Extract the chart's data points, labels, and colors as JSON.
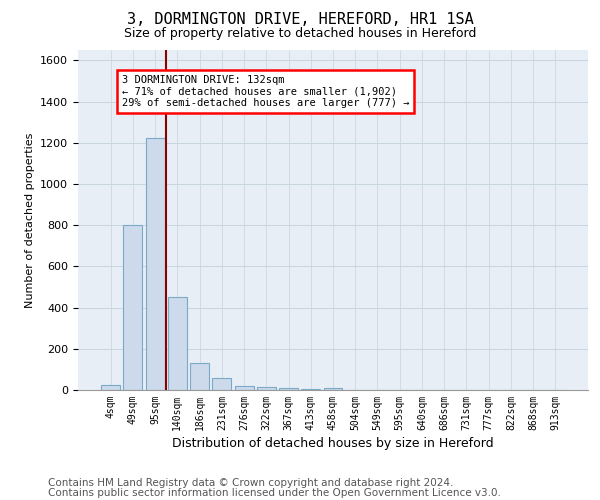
{
  "title": "3, DORMINGTON DRIVE, HEREFORD, HR1 1SA",
  "subtitle": "Size of property relative to detached houses in Hereford",
  "xlabel": "Distribution of detached houses by size in Hereford",
  "ylabel": "Number of detached properties",
  "footnote1": "Contains HM Land Registry data © Crown copyright and database right 2024.",
  "footnote2": "Contains public sector information licensed under the Open Government Licence v3.0.",
  "bar_labels": [
    "4sqm",
    "49sqm",
    "95sqm",
    "140sqm",
    "186sqm",
    "231sqm",
    "276sqm",
    "322sqm",
    "367sqm",
    "413sqm",
    "458sqm",
    "504sqm",
    "549sqm",
    "595sqm",
    "640sqm",
    "686sqm",
    "731sqm",
    "777sqm",
    "822sqm",
    "868sqm",
    "913sqm"
  ],
  "bar_values": [
    25,
    800,
    1225,
    450,
    130,
    60,
    20,
    15,
    10,
    5,
    10,
    0,
    0,
    0,
    0,
    0,
    0,
    0,
    0,
    0,
    0
  ],
  "bar_color": "#ccdaeb",
  "bar_edge_color": "#7aaac8",
  "ylim": [
    0,
    1650
  ],
  "yticks": [
    0,
    200,
    400,
    600,
    800,
    1000,
    1200,
    1400,
    1600
  ],
  "red_line_index": 2.5,
  "annotation_line1": "3 DORMINGTON DRIVE: 132sqm",
  "annotation_line2": "← 71% of detached houses are smaller (1,902)",
  "annotation_line3": "29% of semi-detached houses are larger (777) →",
  "bg_color": "#ffffff",
  "plot_bg_color": "#e8eef5",
  "grid_color": "#c8d4de",
  "title_fontsize": 11,
  "subtitle_fontsize": 9,
  "axis_label_fontsize": 8,
  "tick_fontsize": 7,
  "xlabel_fontsize": 9,
  "footnote_fontsize": 7.5
}
